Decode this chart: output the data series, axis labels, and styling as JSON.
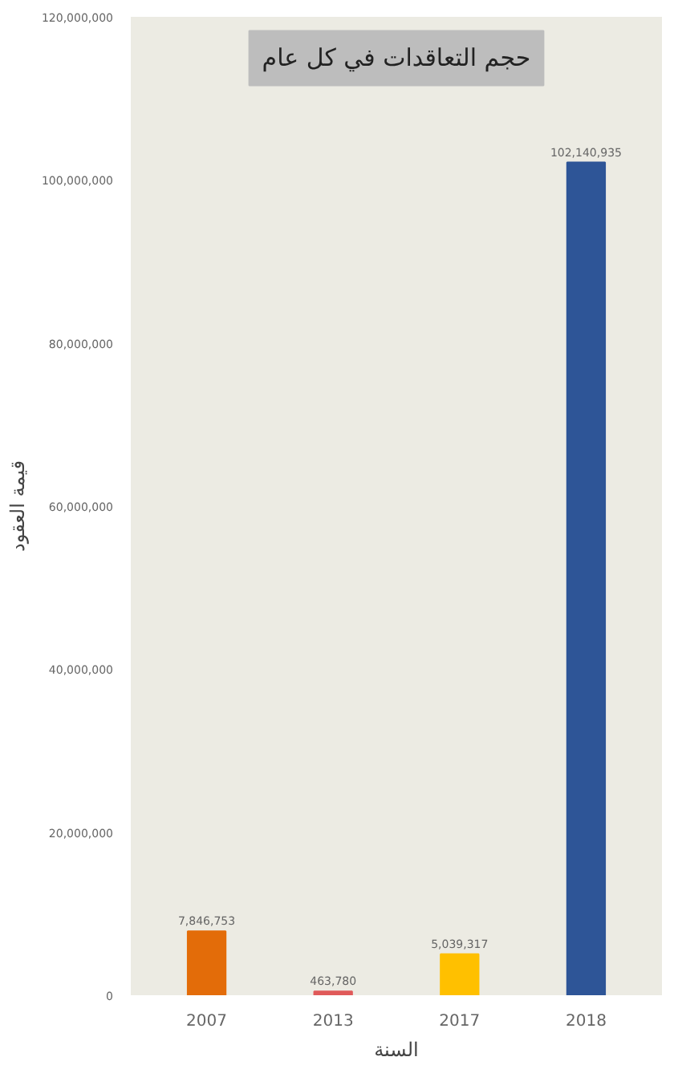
{
  "chart_data": {
    "type": "bar",
    "title": "حجم التعاقدات في كل عام",
    "xlabel": "السنة",
    "ylabel": "قيمة العقود",
    "categories": [
      "2007",
      "2013",
      "2017",
      "2018"
    ],
    "values": [
      7846753,
      463780,
      5039317,
      102140935
    ],
    "colors": [
      "#e36c09",
      "#e05a5a",
      "#ffc000",
      "#2e5597"
    ],
    "value_labels": [
      "7,846,753",
      "463,780",
      "5,039,317",
      "102,140,935"
    ],
    "ylim": [
      0,
      120000000
    ],
    "yticks": [
      {
        "value": 0,
        "label": "0"
      },
      {
        "value": 20000000,
        "label": "20,000,000"
      },
      {
        "value": 40000000,
        "label": "40,000,000"
      },
      {
        "value": 60000000,
        "label": "60,000,000"
      },
      {
        "value": 80000000,
        "label": "80,000,000"
      },
      {
        "value": 100000000,
        "label": "100,000,000"
      },
      {
        "value": 120000000,
        "label": "120,000,000"
      }
    ],
    "grid": false
  }
}
